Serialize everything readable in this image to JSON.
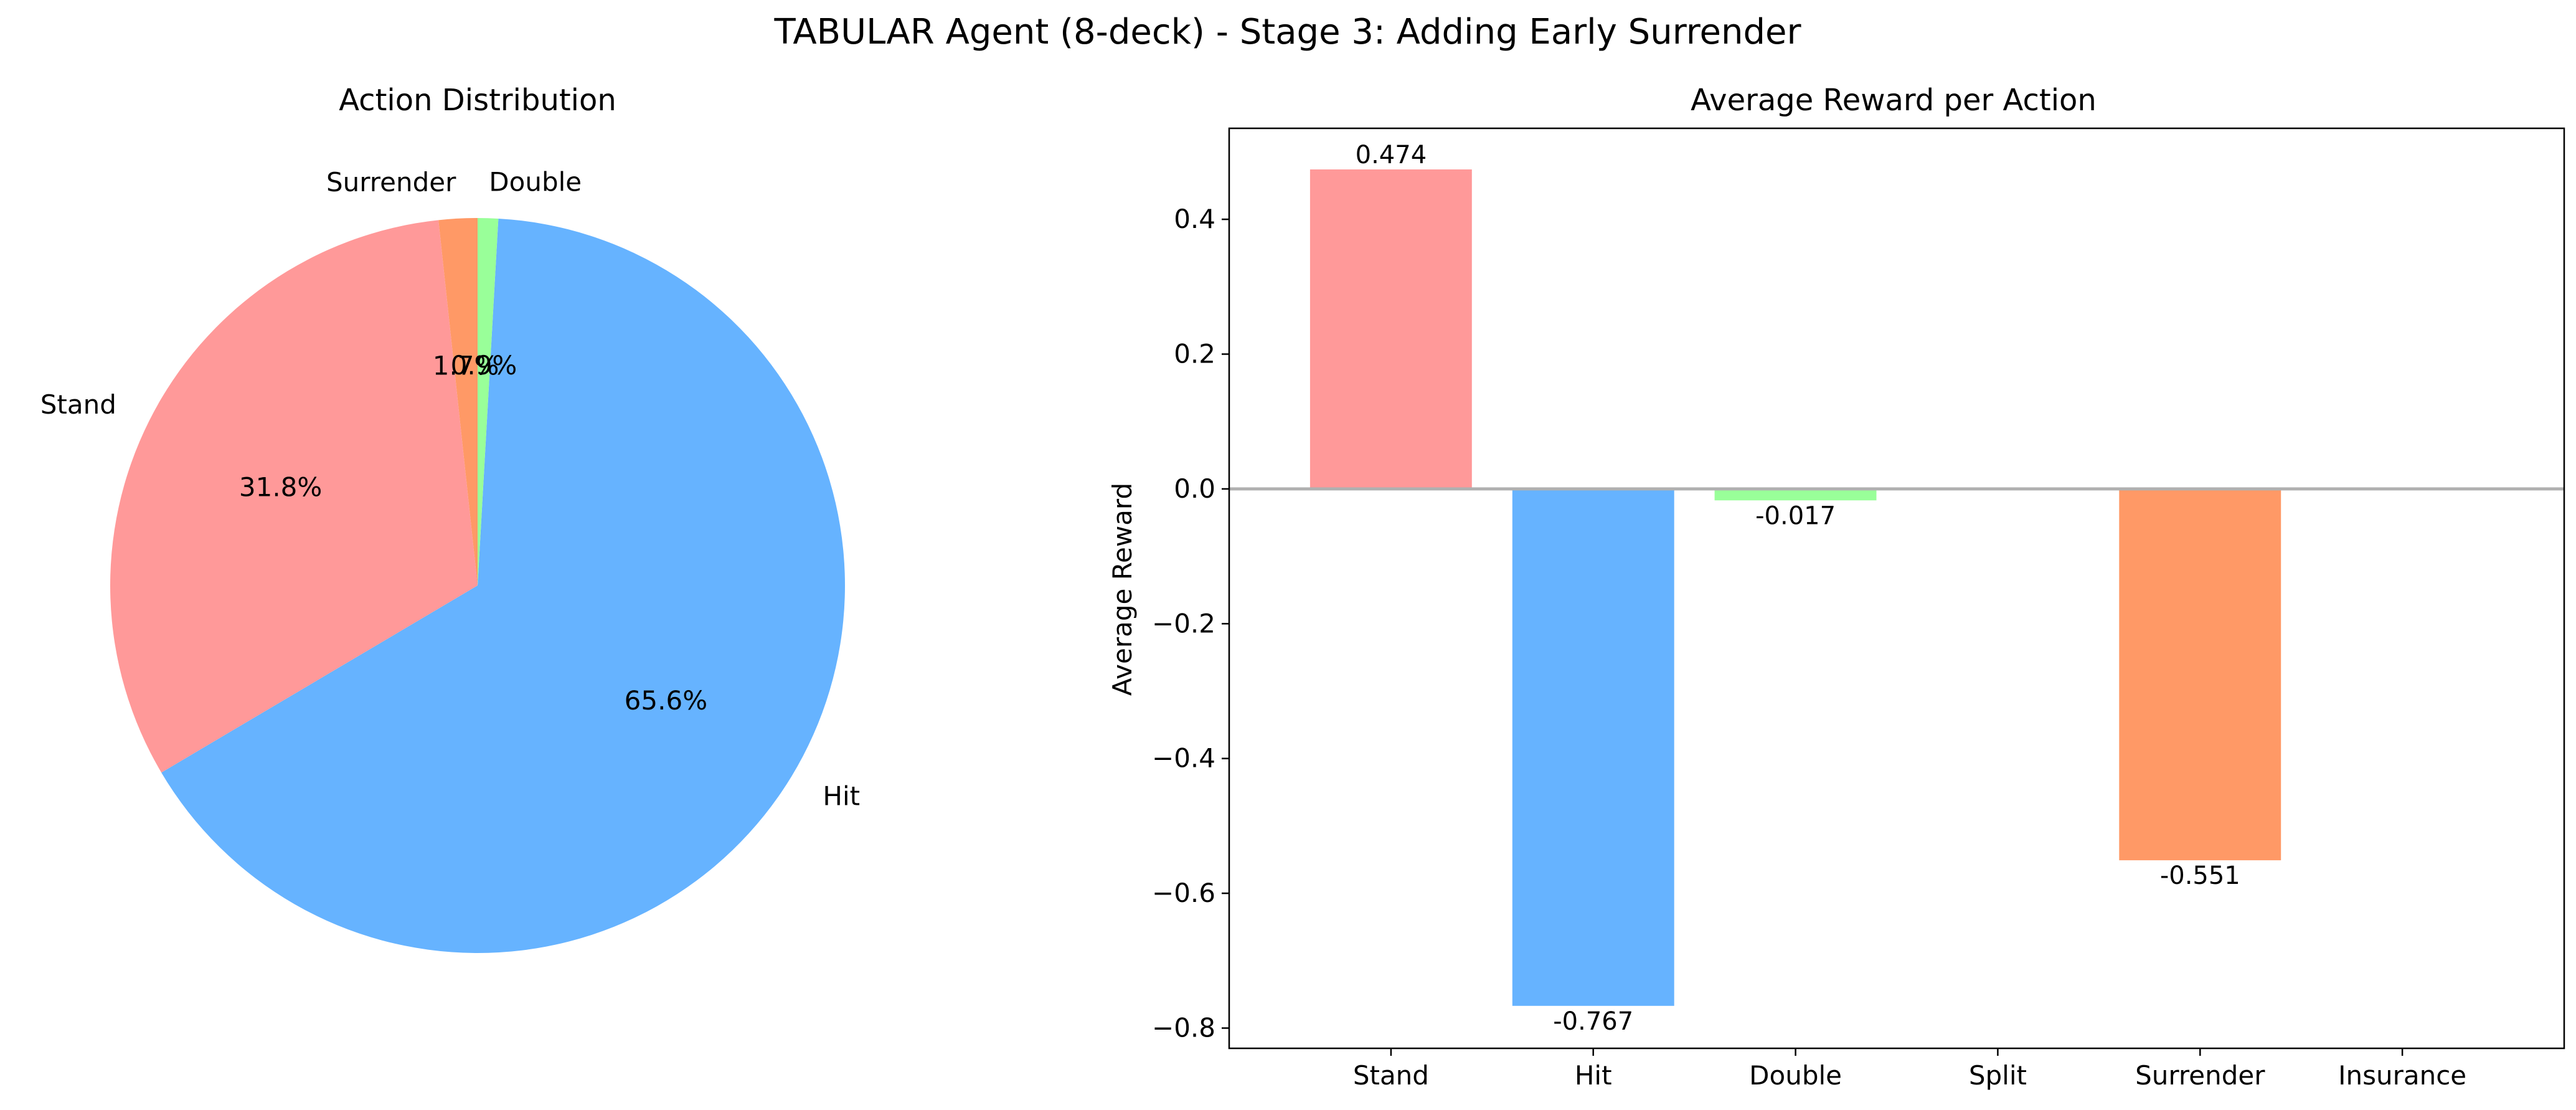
{
  "figure": {
    "suptitle": "TABULAR Agent (8-deck) - Stage 3: Adding Early Surrender"
  },
  "chart_data": [
    {
      "type": "pie",
      "title": "Action Distribution",
      "start_angle_deg": 90,
      "counterclockwise": true,
      "slices": [
        {
          "label": "Surrender",
          "value": 1.7,
          "pct_label": "1.7%",
          "color": "#ff9966"
        },
        {
          "label": "Stand",
          "value": 31.8,
          "pct_label": "31.8%",
          "color": "#ff9999"
        },
        {
          "label": "Hit",
          "value": 65.6,
          "pct_label": "65.6%",
          "color": "#66b3ff"
        },
        {
          "label": "Double",
          "value": 0.9,
          "pct_label": "0.9%",
          "color": "#99ff99"
        }
      ]
    },
    {
      "type": "bar",
      "title": "Average Reward per Action",
      "xlabel": "",
      "ylabel": "Average Reward",
      "ylim": [
        -0.83,
        0.535
      ],
      "yticks": [
        -0.8,
        -0.6,
        -0.4,
        -0.2,
        0.0,
        0.2,
        0.4
      ],
      "ytick_labels": [
        "−0.8",
        "−0.6",
        "−0.4",
        "−0.2",
        "0.0",
        "0.2",
        "0.4"
      ],
      "zero_line": true,
      "categories": [
        "Stand",
        "Hit",
        "Double",
        "Split",
        "Surrender",
        "Insurance"
      ],
      "values": [
        0.474,
        -0.767,
        -0.017,
        null,
        -0.551,
        null
      ],
      "value_labels": [
        "0.474",
        "-0.767",
        "-0.017",
        "",
        "-0.551",
        ""
      ],
      "colors": [
        "#ff9999",
        "#66b3ff",
        "#99ff99",
        "#ffcc99",
        "#ff9966",
        "#c2c2f0"
      ]
    }
  ]
}
